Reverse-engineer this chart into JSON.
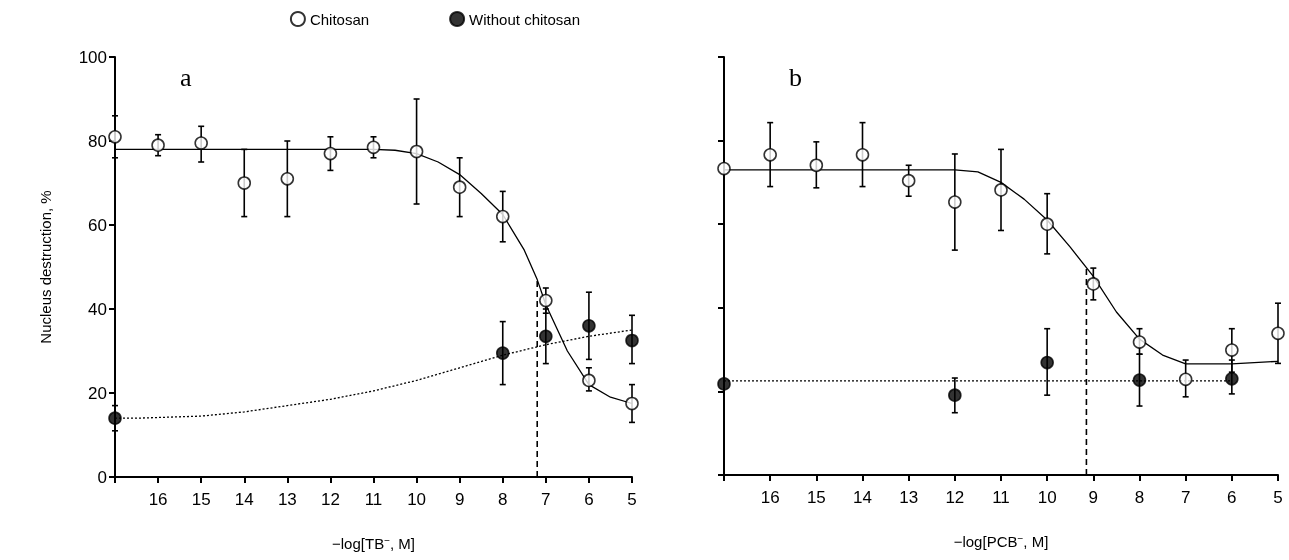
{
  "chart_data": [
    {
      "type": "scatter",
      "title": "a",
      "xlabel": "−log[TB$^{−}$, M]",
      "ylabel": "Nucleus destruction, %",
      "xlim": [
        17,
        5
      ],
      "ylim": [
        0,
        100
      ],
      "xticks": [
        {
          "value": 17,
          "label": null
        },
        16,
        15,
        14,
        13,
        12,
        11,
        10,
        9,
        8,
        7,
        6,
        5
      ],
      "yticks": [
        0,
        20,
        40,
        60,
        80,
        100
      ],
      "legend": "top right",
      "marker": "circle",
      "grid": false,
      "ref_lines": [
        {
          "axis": "x",
          "value": 7.2,
          "line_style": "dashed",
          "color": "#000000"
        }
      ],
      "series": [
        {
          "name": "Chitosan",
          "color": "#ffffff",
          "x": [
            17,
            16,
            15,
            14,
            13,
            12,
            11,
            10,
            9,
            8,
            7,
            6,
            5
          ],
          "values": [
            81,
            79,
            79.5,
            70,
            71,
            77,
            78.5,
            77.5,
            69,
            62,
            42,
            23,
            17.5
          ],
          "errors": [
            [
              76,
              86
            ],
            [
              76.5,
              81.5
            ],
            [
              75,
              83.5
            ],
            [
              62,
              78
            ],
            [
              62,
              80
            ],
            [
              73,
              81
            ],
            [
              76,
              81
            ],
            [
              65,
              90
            ],
            [
              62,
              76
            ],
            [
              56,
              68
            ],
            [
              39,
              45
            ],
            [
              20.5,
              26
            ],
            [
              13,
              22
            ]
          ]
        },
        {
          "name": "Without chitosan",
          "color": "#000000",
          "x": [
            17,
            8,
            7,
            6,
            5
          ],
          "values": [
            14,
            29.5,
            33.5,
            36,
            32.5
          ],
          "errors": [
            [
              11,
              17
            ],
            [
              22,
              37
            ],
            [
              27,
              40
            ],
            [
              28,
              44
            ],
            [
              27,
              38.5
            ]
          ]
        },
        {
          "type": "line",
          "color": "#000000",
          "line_style": "solid",
          "marker": "none",
          "x": [
            17,
            16,
            15,
            14,
            13,
            12,
            11,
            10.5,
            10,
            9.5,
            9,
            8.5,
            8,
            7.5,
            7.2,
            7,
            6.5,
            6,
            5.5,
            5
          ],
          "values": [
            78,
            78,
            78,
            78,
            78,
            78,
            78,
            77.8,
            77,
            75,
            72,
            67.5,
            62.5,
            54,
            47,
            41,
            30,
            22,
            19,
            17.5
          ]
        },
        {
          "type": "line",
          "color": "#000000",
          "line_style": "dotted",
          "marker": "none",
          "x": [
            17,
            16.5,
            15,
            14,
            13,
            12,
            11,
            10,
            9,
            8,
            7,
            6,
            5
          ],
          "values": [
            14,
            14,
            14.5,
            15.5,
            17,
            18.5,
            20.5,
            23,
            26,
            29,
            31.5,
            33.5,
            35
          ]
        }
      ]
    },
    {
      "type": "scatter",
      "title": "b",
      "xlabel": "−log[PCB$^{−}$, M]",
      "xlim": [
        17,
        5
      ],
      "ylim": [
        0,
        100
      ],
      "xticks": [
        {
          "value": 17,
          "label": null
        },
        16,
        15,
        14,
        13,
        12,
        11,
        10,
        9,
        8,
        7,
        6,
        5
      ],
      "yticks": [
        0,
        20,
        40,
        60,
        80,
        100
      ],
      "tick_labels": "x",
      "marker": "circle",
      "grid": false,
      "ref_lines": [
        {
          "axis": "x",
          "value": 9.15,
          "line_style": "dashed",
          "color": "#000000"
        }
      ],
      "series": [
        {
          "color": "#ffffff",
          "x": [
            17,
            16,
            15,
            14,
            13,
            12,
            11,
            10,
            9,
            8,
            7,
            6,
            5
          ],
          "values": [
            73.3,
            76.6,
            74.1,
            76.6,
            70.4,
            65.3,
            68.2,
            60,
            45.7,
            31.8,
            22.9,
            29.9,
            33.9
          ],
          "errors": [
            null,
            [
              69,
              84.3
            ],
            [
              68.7,
              79.7
            ],
            [
              69,
              84.3
            ],
            [
              66.7,
              74.1
            ],
            [
              53.8,
              76.8
            ],
            [
              58.5,
              77.9
            ],
            [
              52.9,
              67.3
            ],
            [
              41.9,
              49.5
            ],
            [
              28.9,
              35
            ],
            [
              18.7,
              27.5
            ],
            [
              24.6,
              35
            ],
            [
              26.7,
              41.1
            ]
          ]
        },
        {
          "color": "#000000",
          "x": [
            17,
            12,
            10,
            8,
            6
          ],
          "values": [
            21.8,
            19.1,
            26.9,
            22.7,
            23
          ],
          "errors": [
            null,
            [
              14.9,
              23.2
            ],
            [
              19.1,
              35
            ],
            [
              16.5,
              28.9
            ],
            [
              19.4,
              27.5
            ]
          ]
        },
        {
          "type": "line",
          "color": "#000000",
          "line_style": "solid",
          "marker": "none",
          "x": [
            17,
            16,
            15,
            14,
            13,
            12,
            11.5,
            11,
            10.5,
            10,
            9.5,
            9,
            8.5,
            8,
            7.5,
            7,
            6,
            5
          ],
          "values": [
            73,
            73,
            73,
            73,
            73,
            73,
            72.5,
            70,
            66,
            61,
            54.5,
            47.5,
            39,
            32.5,
            28.7,
            26.6,
            26.6,
            27.2
          ]
        },
        {
          "type": "line",
          "color": "#000000",
          "line_style": "dotted",
          "marker": "none",
          "x": [
            17,
            16.5,
            15,
            14,
            13,
            12,
            11,
            10,
            9,
            8,
            7,
            6
          ],
          "values": [
            22.5,
            22.5,
            22.5,
            22.5,
            22.5,
            22.5,
            22.5,
            22.5,
            22.5,
            22.5,
            22.5,
            22.5
          ]
        }
      ]
    }
  ]
}
